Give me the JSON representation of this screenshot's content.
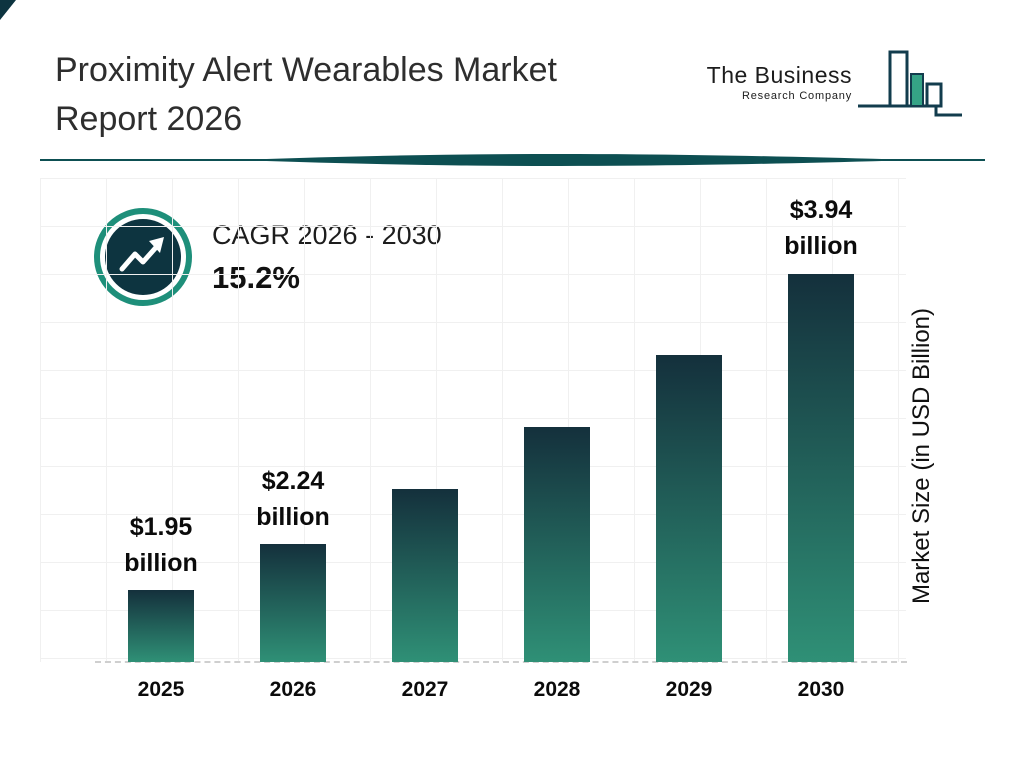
{
  "header": {
    "title_line1": "Proximity Alert Wearables Market",
    "title_line2": "Report 2026"
  },
  "logo": {
    "name_line1": "The Business",
    "name_line2": "Research Company"
  },
  "cagr": {
    "label": "CAGR 2026 - 2030",
    "value": "15.2%"
  },
  "chart_data": {
    "type": "bar",
    "title": "Proximity Alert Wearables Market Report 2026",
    "xlabel": "",
    "ylabel": "Market Size (in USD Billion)",
    "categories": [
      "2025",
      "2026",
      "2027",
      "2028",
      "2029",
      "2030"
    ],
    "values": [
      1.95,
      2.24,
      2.58,
      2.97,
      3.42,
      3.94
    ],
    "value_labels": [
      {
        "amount": "$1.95",
        "unit": "billion"
      },
      {
        "amount": "$2.24",
        "unit": "billion"
      },
      null,
      null,
      null,
      {
        "amount": "$3.94",
        "unit": "billion"
      }
    ],
    "cagr_percent": 15.2,
    "grid": true,
    "baseline_style": "dashed",
    "legend_position": "none",
    "axis_range_hint": {
      "vmin": 1.5,
      "vmax": 3.94
    },
    "colors": {
      "bar_gradient_top": "#14303c",
      "bar_gradient_bottom": "#2f9076",
      "badge_ring_teal": "#1e8f7a",
      "badge_navy": "#0d3440",
      "divider_teal": "#0d4f52",
      "logo_green": "#35a386",
      "logo_navy": "#123c4d"
    }
  }
}
